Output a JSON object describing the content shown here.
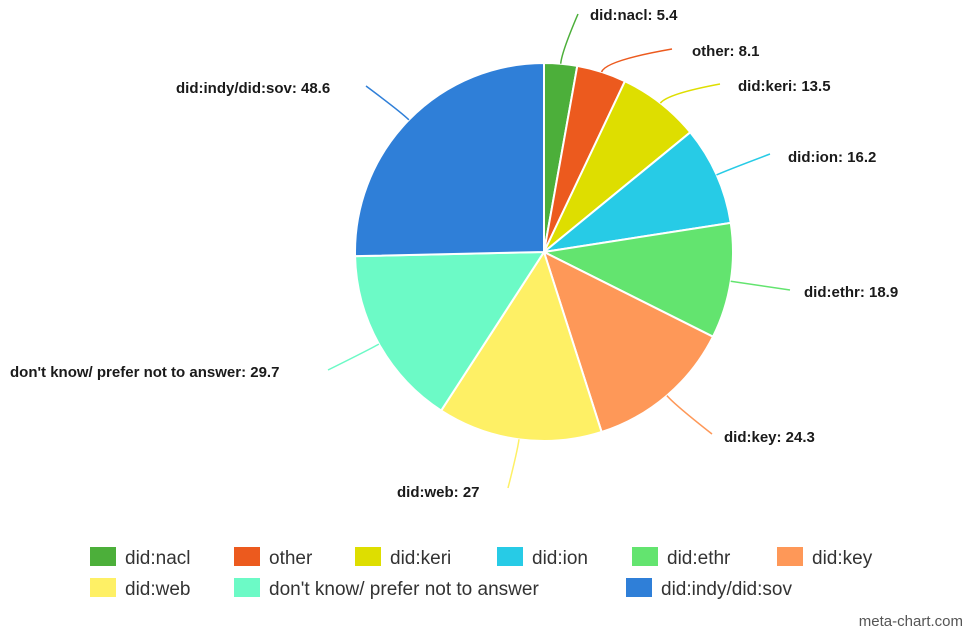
{
  "chart_data": {
    "type": "pie",
    "categories": [
      "did:nacl",
      "other",
      "did:keri",
      "did:ion",
      "did:ethr",
      "did:key",
      "did:web",
      "don't know/ prefer not to answer",
      "did:indy/did:sov"
    ],
    "values": [
      5.4,
      8.1,
      13.5,
      16.2,
      18.9,
      24.3,
      27,
      29.7,
      48.6
    ],
    "labels": [
      "did:nacl: 5.4",
      "other: 8.1",
      "did:keri: 13.5",
      "did:ion: 16.2",
      "did:ethr: 18.9",
      "did:key: 24.3",
      "did:web: 27",
      "don't know/ prefer not to answer: 29.7",
      "did:indy/did:sov: 48.6"
    ],
    "colors": [
      "#4caf3a",
      "#ec5a1e",
      "#dede00",
      "#27cbe6",
      "#63e46f",
      "#fe9858",
      "#fef065",
      "#6cfac6",
      "#2f7fd8"
    ],
    "legend": {
      "position": "bottom",
      "rows": [
        [
          "did:nacl",
          "other",
          "did:keri",
          "did:ion",
          "did:ethr",
          "did:key"
        ],
        [
          "did:web",
          "don't know/ prefer not to answer",
          "did:indy/did:sov"
        ]
      ]
    }
  },
  "credit": "meta-chart.com"
}
